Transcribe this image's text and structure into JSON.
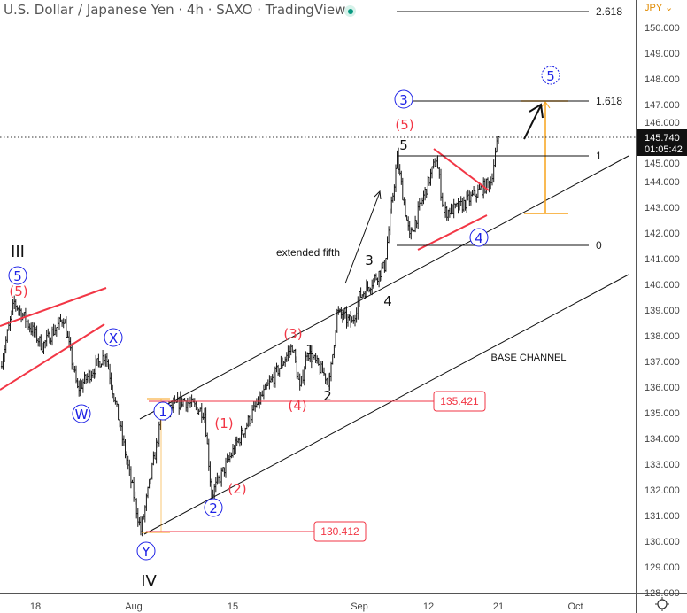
{
  "header": {
    "title": "U.S. Dollar / Japanese Yen · 4h · SAXO · TradingView",
    "status": "live"
  },
  "price_axis": {
    "currency": "JPY ⌄",
    "current_price": "145.740",
    "countdown": "01:05:42"
  },
  "colors": {
    "bars": "#1a1a1a",
    "red": "#f23645",
    "blue": "#1e22e6",
    "orange": "#f7a21b",
    "axis_text": "#444444"
  },
  "chart_data": {
    "type": "ohlc",
    "symbol": "USDJPY",
    "interval": "4h",
    "ylim": [
      128,
      150.5
    ],
    "y_ticks": [
      "150.000",
      "149.000",
      "148.000",
      "147.000",
      "146.000",
      "145.000",
      "144.000",
      "143.000",
      "142.000",
      "141.000",
      "140.000",
      "139.000",
      "138.000",
      "137.000",
      "136.000",
      "135.000",
      "134.000",
      "133.000",
      "132.000",
      "131.000",
      "130.000",
      "129.000",
      "128.000"
    ],
    "x_ticks": [
      "18",
      "Aug",
      "15",
      "Sep",
      "12",
      "21",
      "Oct"
    ],
    "path": [
      {
        "date": "2022-07-13",
        "price": 136.8
      },
      {
        "date": "2022-07-15",
        "price": 139.3
      },
      {
        "date": "2022-07-19",
        "price": 137.6
      },
      {
        "date": "2022-07-22",
        "price": 138.7
      },
      {
        "date": "2022-07-24",
        "price": 135.9
      },
      {
        "date": "2022-07-28",
        "price": 137.3
      },
      {
        "date": "2022-08-02",
        "price": 130.4
      },
      {
        "date": "2022-08-05",
        "price": 134.9
      },
      {
        "date": "2022-08-08",
        "price": 135.5
      },
      {
        "date": "2022-08-11",
        "price": 135.0
      },
      {
        "date": "2022-08-12",
        "price": 131.8
      },
      {
        "date": "2022-08-15",
        "price": 133.5
      },
      {
        "date": "2022-08-18",
        "price": 135.2
      },
      {
        "date": "2022-08-23",
        "price": 137.6
      },
      {
        "date": "2022-08-24",
        "price": 135.9
      },
      {
        "date": "2022-08-25",
        "price": 137.4
      },
      {
        "date": "2022-08-28",
        "price": 136.2
      },
      {
        "date": "2022-08-29",
        "price": 138.9
      },
      {
        "date": "2022-08-31",
        "price": 138.5
      },
      {
        "date": "2022-09-01",
        "price": 139.5
      },
      {
        "date": "2022-09-05",
        "price": 140.7
      },
      {
        "date": "2022-09-07",
        "price": 144.9
      },
      {
        "date": "2022-09-09",
        "price": 141.8
      },
      {
        "date": "2022-09-13",
        "price": 144.9
      },
      {
        "date": "2022-09-14",
        "price": 142.8
      },
      {
        "date": "2022-09-16",
        "price": 143.0
      },
      {
        "date": "2022-09-20",
        "price": 144.0
      },
      {
        "date": "2022-09-21",
        "price": 145.74
      }
    ],
    "fib_levels": [
      "2.618",
      "1.618",
      "1",
      "0"
    ],
    "price_labels": [
      "135.421",
      "130.412"
    ],
    "annotations": {
      "III": "III",
      "IV": "IV",
      "c5_left": "5",
      "r5_left": "(5)",
      "X": "X",
      "W": "W",
      "Y": "Y",
      "c1": "1",
      "r1": "(1)",
      "r2": "(2)",
      "c2": "2",
      "r3": "(3)",
      "b1": "1",
      "r4": "(4)",
      "b2": "2",
      "b3": "3",
      "b4": "4",
      "b5": "5",
      "r5": "(5)",
      "c3": "3",
      "c4": "4",
      "c5": "5",
      "extended": "extended fifth",
      "base": "BASE CHANNEL"
    }
  }
}
